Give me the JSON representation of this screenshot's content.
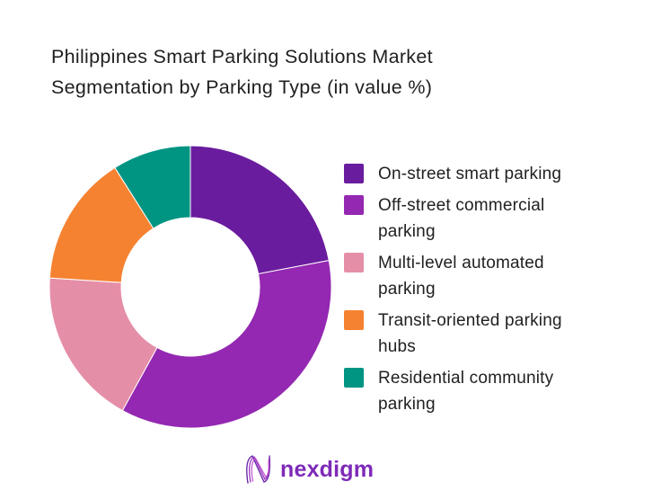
{
  "title": {
    "line1": "Philippines Smart Parking Solutions Market",
    "line2": "Segmentation by Parking Type (in value %)"
  },
  "chart_data": {
    "type": "pie",
    "subtype": "donut",
    "title": "Philippines Smart Parking Solutions Market Segmentation by Parking Type (in value %)",
    "unit": "%",
    "categories": [
      "On-street smart parking",
      "Off-street commercial parking",
      "Multi-level automated parking",
      "Transit-oriented parking hubs",
      "Residential community parking"
    ],
    "values": [
      22,
      36,
      18,
      15,
      9
    ],
    "colors": [
      "#6a1c9e",
      "#9428b2",
      "#e58ea8",
      "#f58231",
      "#009483"
    ],
    "start_angle_deg": 0,
    "direction": "clockwise",
    "inner_radius_ratio": 0.49,
    "legend_position": "right",
    "data_labels_shown": false,
    "background": "#ffffff"
  },
  "legend": {
    "items": [
      {
        "label": "On-street smart parking",
        "color": "#6a1c9e"
      },
      {
        "label": "Off-street commercial parking",
        "color": "#9428b2"
      },
      {
        "label": "Multi-level automated parking",
        "color": "#e58ea8"
      },
      {
        "label": "Transit-oriented parking hubs",
        "color": "#f58231"
      },
      {
        "label": "Residential community parking",
        "color": "#009483"
      }
    ]
  },
  "footer": {
    "logo_text": "nexdigm",
    "logo_color": "#7e2ab8",
    "logo_icon": "nexdigm-wave-n-icon"
  }
}
